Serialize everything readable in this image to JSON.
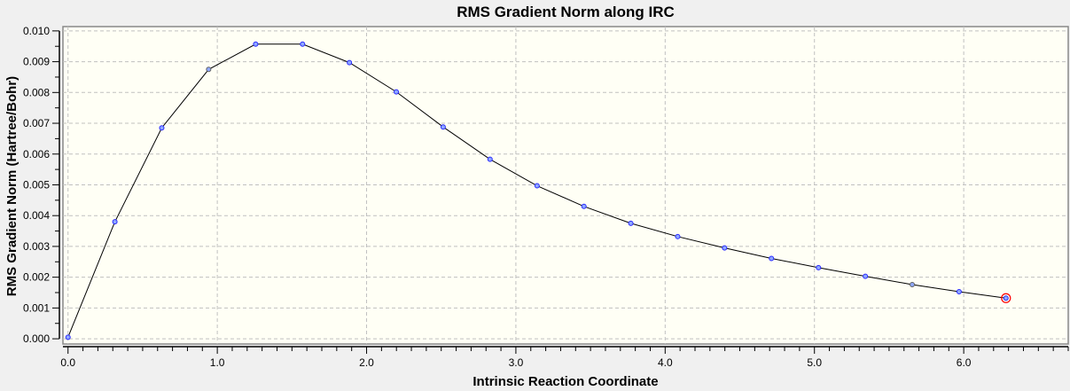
{
  "chart_data": {
    "type": "line",
    "title": "RMS Gradient Norm along IRC",
    "xlabel": "Intrinsic Reaction Coordinate",
    "ylabel": "RMS Gradient Norm (Hartree/Bohr)",
    "xlim": [
      -0.034,
      6.7
    ],
    "ylim": [
      -0.00017,
      0.01014
    ],
    "xticks": [
      0.0,
      1.0,
      2.0,
      3.0,
      4.0,
      5.0,
      6.0
    ],
    "xtick_labels": [
      "0.0",
      "1.0",
      "2.0",
      "3.0",
      "4.0",
      "5.0",
      "6.0"
    ],
    "yticks": [
      0,
      0.001,
      0.002,
      0.003,
      0.004,
      0.005,
      0.006,
      0.007,
      0.008,
      0.009,
      0.01
    ],
    "ytick_labels": [
      "0.000",
      "0.001",
      "0.002",
      "0.003",
      "0.004",
      "0.005",
      "0.006",
      "0.007",
      "0.008",
      "0.009",
      "0.010"
    ],
    "grid": true,
    "x": [
      0.0,
      0.314,
      0.628,
      0.942,
      1.257,
      1.571,
      1.885,
      2.199,
      2.513,
      2.827,
      3.142,
      3.456,
      3.77,
      4.084,
      4.398,
      4.712,
      5.027,
      5.341,
      5.655,
      5.969,
      6.283
    ],
    "y": [
      5e-05,
      0.0038,
      0.00685,
      0.00875,
      0.00957,
      0.00957,
      0.00897,
      0.00802,
      0.00688,
      0.00583,
      0.00497,
      0.0043,
      0.00375,
      0.00332,
      0.00295,
      0.00261,
      0.00231,
      0.00203,
      0.00176,
      0.00153,
      0.00132
    ],
    "highlight_index": 20,
    "colors": {
      "line": "#000000",
      "marker": "#2a2aff",
      "marker_alt": "#606060",
      "highlight": "#ff0000",
      "plot_bg": "#fffff5",
      "grid": "#c0c0c0"
    }
  }
}
